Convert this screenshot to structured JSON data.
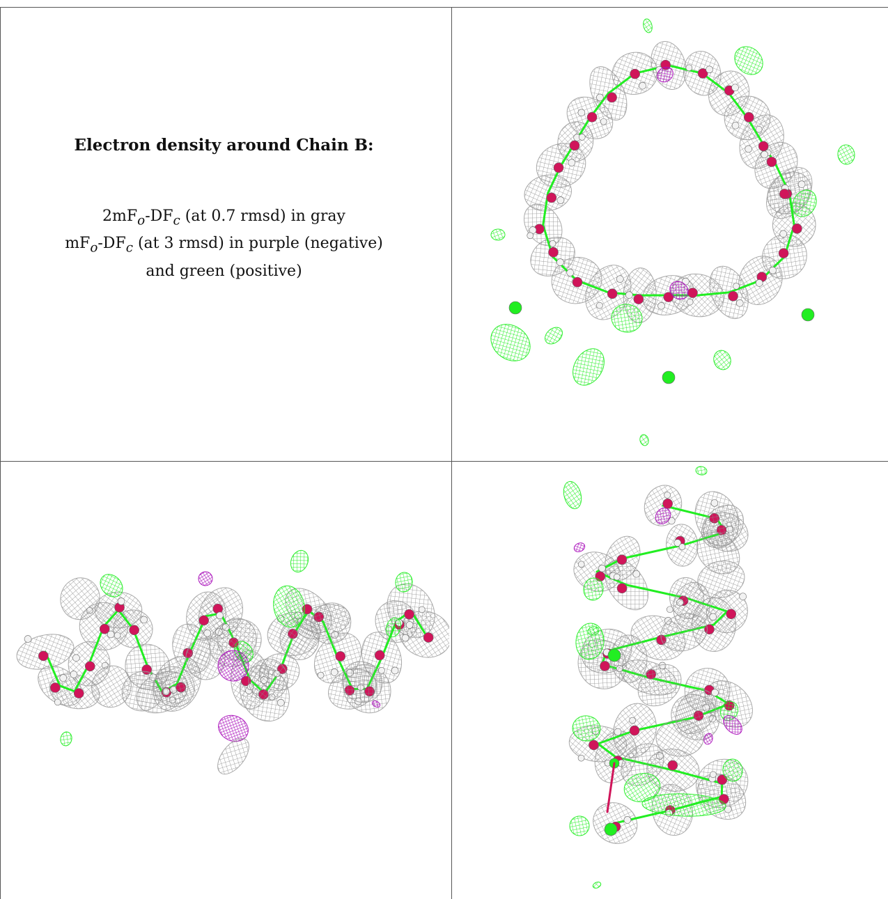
{
  "caption": {
    "title": "Electron density around Chain B:",
    "line1_pre": "2mF",
    "line1_sub1": "o",
    "line1_mid": "-DF",
    "line1_sub2": "c",
    "line1_post": " (at 0.7 rmsd) in gray",
    "line2_pre": "mF",
    "line2_sub1": "o",
    "line2_mid": "-DF",
    "line2_sub2": "c",
    "line2_post": " (at 3 rmsd) in purple (negative)",
    "line3": "and green (positive)"
  },
  "colors": {
    "mesh_gray": "#8a8a8a",
    "positive_green": "#22ee22",
    "negative_purple": "#aa11bb",
    "oxygen_red": "#d0155a",
    "hydrogen_white": "#f2f2f2"
  },
  "panels": [
    {
      "name": "top-right",
      "view": "helix-axial"
    },
    {
      "name": "bottom-left",
      "view": "helix-side-horizontal"
    },
    {
      "name": "bottom-right",
      "view": "helix-side-vertical"
    }
  ]
}
